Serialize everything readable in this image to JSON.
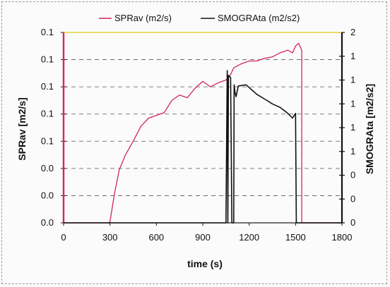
{
  "chart_data": {
    "type": "line",
    "xlabel": "time (s)",
    "ylabel_left": "SPRav [m2/s]",
    "ylabel_right": "SMOGRAta [m2/s2]",
    "x_ticks": [
      "0",
      "300",
      "600",
      "900",
      "1200",
      "1500",
      "1800"
    ],
    "x_tick_values": [
      0,
      300,
      600,
      900,
      1200,
      1500,
      1800
    ],
    "y_left_ticks": [
      "0.1",
      "0.1",
      "0.1",
      "0.1",
      "0.1",
      "0.0",
      "0.0",
      "0.0"
    ],
    "y_right_ticks": [
      "2",
      "1",
      "1",
      "1",
      "1",
      "1",
      "0",
      "0",
      "0"
    ],
    "xlim": [
      0,
      1800
    ],
    "ylim_left": [
      0,
      7
    ],
    "ylim_right": [
      0,
      8
    ],
    "grid": "horizontal-dashed",
    "legend_position": "top",
    "reference_line": {
      "color": "#e8d23a"
    },
    "series": [
      {
        "name": "SPRav (m2/s)",
        "axis": "left",
        "color": "#d4245a",
        "x": [
          0,
          0,
          1,
          290,
          300,
          330,
          360,
          400,
          450,
          500,
          550,
          600,
          650,
          700,
          750,
          800,
          850,
          900,
          950,
          1000,
          1050,
          1080,
          1100,
          1150,
          1200,
          1250,
          1300,
          1350,
          1400,
          1450,
          1480,
          1500,
          1520,
          1540,
          1540,
          1545,
          1800
        ],
        "y": [
          0,
          7,
          0,
          0,
          0.05,
          1.1,
          1.95,
          2.5,
          3.0,
          3.55,
          3.85,
          3.95,
          4.05,
          4.5,
          4.7,
          4.6,
          4.95,
          5.2,
          5.0,
          5.15,
          5.25,
          5.45,
          5.7,
          5.85,
          5.95,
          5.95,
          6.05,
          6.1,
          6.25,
          6.35,
          6.25,
          6.5,
          6.6,
          6.35,
          0,
          0,
          0
        ]
      },
      {
        "name": "SMOGRAta (m2/s2)",
        "axis": "right",
        "color": "#111111",
        "x": [
          0,
          1050,
          1058,
          1062,
          1066,
          1080,
          1088,
          1100,
          1103,
          1108,
          1115,
          1130,
          1180,
          1250,
          1300,
          1350,
          1400,
          1450,
          1480,
          1500,
          1505,
          1508,
          1800
        ],
        "y": [
          0,
          0,
          6.4,
          0,
          6.2,
          6.1,
          0,
          0,
          5.8,
          5.5,
          5.3,
          5.75,
          5.8,
          5.4,
          5.2,
          5.0,
          4.85,
          4.6,
          4.4,
          4.6,
          0,
          0,
          0
        ]
      }
    ]
  }
}
